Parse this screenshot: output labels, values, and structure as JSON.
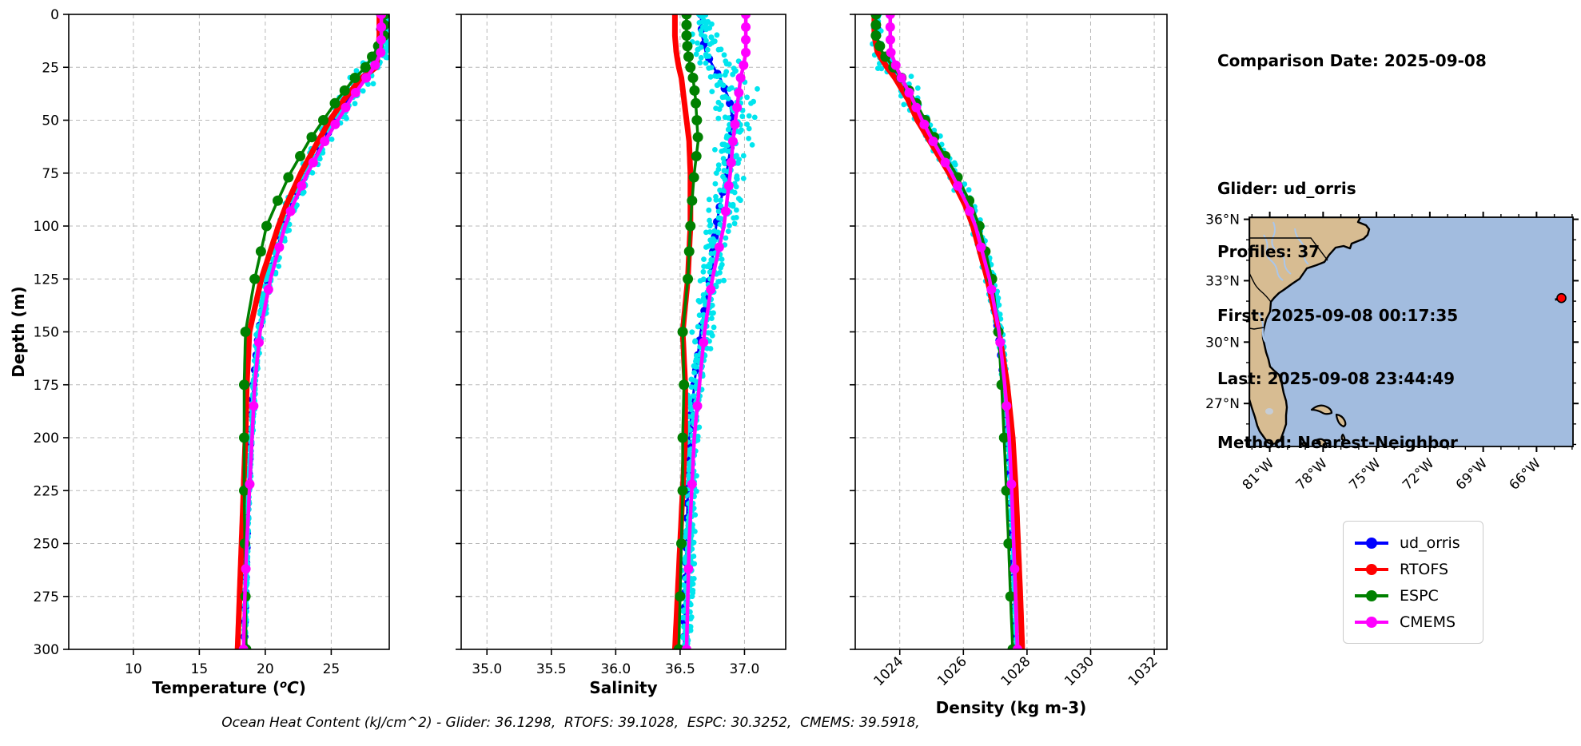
{
  "info_panel": {
    "comparison_date": "Comparison Date: 2025-09-08",
    "glider": "Glider: ud_orris",
    "profiles": "Profiles: 37",
    "first": "First: 2025-09-08 00:17:35",
    "last": "Last: 2025-09-08 23:44:49",
    "method": "Method: Nearest-Neighbor"
  },
  "caption": "Ocean Heat Content (kJ/cm^2) - Glider: 36.1298,  RTOFS: 39.1028,  ESPC: 30.3252,  CMEMS: 39.5918,",
  "legend": {
    "entries": [
      {
        "label": "ud_orris",
        "color": "#0000ff"
      },
      {
        "label": "RTOFS",
        "color": "#ff0000"
      },
      {
        "label": "ESPC",
        "color": "#008000"
      },
      {
        "label": "CMEMS",
        "color": "#ff00ff"
      }
    ]
  },
  "colors": {
    "grid": "#b8b8b8",
    "scatter": "#00e5ee",
    "ocean": "#a2bcdf",
    "land": "#d7bc92",
    "river": "#aac6ea",
    "glider_dot": "#ff0000"
  },
  "chart_data": [
    {
      "type": "line",
      "panel": "temperature",
      "xlabel": "Temperature (°C)",
      "ylabel": "Depth (m)",
      "xlim": [
        5.1,
        29.4
      ],
      "ylim": [
        300,
        0
      ],
      "xticks": [
        10,
        15,
        20,
        25
      ],
      "xtick_labels": [
        "10",
        "15",
        "20",
        "25"
      ],
      "yticks": [
        0,
        25,
        50,
        75,
        100,
        125,
        150,
        175,
        200,
        225,
        250,
        275,
        300
      ],
      "rotate_xticks": false,
      "depths": [
        0,
        10,
        18,
        25,
        30,
        40,
        50,
        60,
        75,
        90,
        100,
        125,
        150,
        175,
        200,
        225,
        250,
        275,
        300
      ],
      "series": [
        {
          "name": "ud_orris",
          "color": "#0000ff",
          "lw": 3,
          "marker_r": 5,
          "marker_step": 7,
          "values": [
            28.7,
            28.7,
            28.6,
            28.1,
            27.4,
            26.3,
            25.3,
            24.4,
            23.1,
            22.0,
            21.4,
            20.2,
            19.5,
            19.1,
            18.9,
            18.7,
            18.6,
            18.5,
            18.4
          ]
        },
        {
          "name": "RTOFS",
          "color": "#ff0000",
          "lw": 7,
          "marker_r": 0,
          "marker_step": 0,
          "values": [
            28.65,
            28.65,
            28.55,
            28.4,
            27.3,
            26.0,
            24.9,
            24.0,
            22.7,
            21.6,
            21.0,
            19.7,
            18.8,
            18.6,
            18.5,
            18.35,
            18.2,
            18.05,
            17.9
          ]
        },
        {
          "name": "ESPC",
          "color": "#008000",
          "lw": 3.5,
          "marker_r": 6.5,
          "marker_depths": [
            0,
            5,
            10,
            15,
            20,
            25,
            30,
            36,
            42,
            50,
            58,
            67,
            77,
            88,
            100,
            112,
            125,
            150,
            175,
            200,
            225,
            250,
            275,
            300
          ],
          "values": [
            29.05,
            29.0,
            28.3,
            27.6,
            26.8,
            25.5,
            24.4,
            23.3,
            21.9,
            20.8,
            20.1,
            19.2,
            18.5,
            18.4,
            18.4,
            18.4,
            18.45,
            18.5,
            18.55
          ]
        },
        {
          "name": "CMEMS",
          "color": "#ff00ff",
          "lw": 4.5,
          "marker_r": 6,
          "marker_depths": [
            0,
            6,
            12,
            18,
            24,
            30,
            37,
            44,
            52,
            60,
            70,
            81,
            93,
            110,
            130,
            155,
            185,
            222,
            262,
            300
          ],
          "values": [
            28.8,
            28.8,
            28.75,
            28.25,
            27.65,
            26.5,
            25.5,
            24.5,
            23.2,
            22.1,
            21.5,
            20.4,
            19.6,
            19.2,
            19.0,
            18.8,
            18.6,
            18.45,
            18.35
          ]
        }
      ],
      "scatter": {
        "name": "glider raw profiles",
        "base": "ud_orris",
        "profiles": 6,
        "depth_step": 3.2,
        "spread": [
          [
            0,
            0.12
          ],
          [
            15,
            0.3
          ],
          [
            25,
            1.0
          ],
          [
            35,
            1.0
          ],
          [
            50,
            0.6
          ],
          [
            75,
            0.5
          ],
          [
            100,
            0.45
          ],
          [
            130,
            0.3
          ],
          [
            160,
            0.15
          ],
          [
            200,
            0.1
          ],
          [
            250,
            0.08
          ],
          [
            300,
            0.07
          ]
        ],
        "bias": [
          [
            0,
            0.45
          ],
          [
            15,
            0.45
          ],
          [
            25,
            0.25
          ],
          [
            40,
            0.15
          ],
          [
            60,
            0.1
          ],
          [
            100,
            0.15
          ],
          [
            150,
            0.1
          ],
          [
            200,
            0.05
          ],
          [
            300,
            0.05
          ]
        ]
      }
    },
    {
      "type": "line",
      "panel": "salinity",
      "xlabel": "Salinity",
      "ylabel": "Depth (m)",
      "xlim": [
        34.8,
        37.32
      ],
      "ylim": [
        300,
        0
      ],
      "xticks": [
        35.0,
        35.5,
        36.0,
        36.5,
        37.0
      ],
      "xtick_labels": [
        "35.0",
        "35.5",
        "36.0",
        "36.5",
        "37.0"
      ],
      "yticks": [
        0,
        25,
        50,
        75,
        100,
        125,
        150,
        175,
        200,
        225,
        250,
        275,
        300
      ],
      "rotate_xticks": false,
      "depths": [
        0,
        10,
        18,
        25,
        30,
        40,
        50,
        60,
        75,
        90,
        100,
        125,
        150,
        175,
        200,
        225,
        250,
        275,
        300
      ],
      "series": [
        {
          "name": "ud_orris",
          "color": "#0000ff",
          "lw": 3,
          "marker_r": 5,
          "marker_step": 7,
          "values": [
            36.66,
            36.67,
            36.7,
            36.76,
            36.81,
            36.88,
            36.91,
            36.9,
            36.86,
            36.81,
            36.78,
            36.73,
            36.66,
            36.61,
            36.57,
            36.56,
            36.55,
            36.54,
            36.53
          ]
        },
        {
          "name": "RTOFS",
          "color": "#ff0000",
          "lw": 7,
          "marker_r": 0,
          "marker_step": 0,
          "values": [
            36.46,
            36.46,
            36.47,
            36.49,
            36.51,
            36.53,
            36.55,
            36.57,
            36.58,
            36.58,
            36.58,
            36.56,
            36.52,
            36.54,
            36.54,
            36.52,
            36.5,
            36.48,
            36.46
          ]
        },
        {
          "name": "ESPC",
          "color": "#008000",
          "lw": 3.5,
          "marker_r": 6.5,
          "marker_depths": [
            0,
            5,
            10,
            15,
            20,
            25,
            30,
            36,
            42,
            50,
            58,
            67,
            77,
            88,
            100,
            112,
            125,
            150,
            175,
            200,
            225,
            250,
            275,
            300
          ],
          "values": [
            36.55,
            36.55,
            36.56,
            36.58,
            36.6,
            36.62,
            36.63,
            36.64,
            36.61,
            36.59,
            36.58,
            36.56,
            36.52,
            36.53,
            36.52,
            36.52,
            36.51,
            36.5,
            36.49
          ]
        },
        {
          "name": "CMEMS",
          "color": "#ff00ff",
          "lw": 4.5,
          "marker_r": 6,
          "marker_depths": [
            0,
            6,
            12,
            18,
            24,
            30,
            37,
            44,
            52,
            60,
            70,
            81,
            93,
            110,
            130,
            155,
            185,
            222,
            262,
            300
          ],
          "values": [
            37.01,
            37.01,
            37.01,
            36.99,
            36.97,
            36.95,
            36.93,
            36.91,
            36.89,
            36.86,
            36.84,
            36.75,
            36.69,
            36.65,
            36.61,
            36.59,
            36.57,
            36.56,
            36.55
          ]
        }
      ],
      "scatter": {
        "name": "glider raw profiles",
        "base": "ud_orris",
        "profiles": 6,
        "depth_step": 3.2,
        "spread": [
          [
            0,
            0.04
          ],
          [
            20,
            0.1
          ],
          [
            30,
            0.17
          ],
          [
            45,
            0.13
          ],
          [
            60,
            0.1
          ],
          [
            80,
            0.09
          ],
          [
            100,
            0.09
          ],
          [
            130,
            0.07
          ],
          [
            160,
            0.05
          ],
          [
            200,
            0.04
          ],
          [
            300,
            0.03
          ]
        ],
        "bias": [
          [
            0,
            0.02
          ],
          [
            30,
            0.05
          ],
          [
            60,
            0.03
          ],
          [
            100,
            0.02
          ],
          [
            300,
            0.02
          ]
        ]
      }
    },
    {
      "type": "line",
      "panel": "density",
      "xlabel": "Density (kg m-3)",
      "ylabel": "Depth (m)",
      "xlim": [
        1022.6,
        1032.4
      ],
      "ylim": [
        300,
        0
      ],
      "xticks": [
        1024,
        1026,
        1028,
        1030,
        1032
      ],
      "xtick_labels": [
        "1024",
        "1026",
        "1028",
        "1030",
        "1032"
      ],
      "yticks": [
        0,
        25,
        50,
        75,
        100,
        125,
        150,
        175,
        200,
        225,
        250,
        275,
        300
      ],
      "rotate_xticks": true,
      "depths": [
        0,
        10,
        18,
        25,
        30,
        40,
        50,
        60,
        75,
        90,
        100,
        125,
        150,
        175,
        200,
        225,
        250,
        275,
        300
      ],
      "series": [
        {
          "name": "ud_orris",
          "color": "#0000ff",
          "lw": 3,
          "marker_r": 5,
          "marker_step": 7,
          "values": [
            1023.3,
            1023.3,
            1023.35,
            1023.7,
            1023.95,
            1024.3,
            1024.65,
            1025.0,
            1025.6,
            1026.1,
            1026.35,
            1026.8,
            1027.1,
            1027.28,
            1027.4,
            1027.48,
            1027.55,
            1027.6,
            1027.65
          ]
        },
        {
          "name": "RTOFS",
          "color": "#ff0000",
          "lw": 7,
          "marker_r": 0,
          "marker_step": 0,
          "values": [
            1023.2,
            1023.2,
            1023.3,
            1023.6,
            1023.85,
            1024.25,
            1024.55,
            1024.95,
            1025.55,
            1026.05,
            1026.3,
            1026.75,
            1027.12,
            1027.38,
            1027.55,
            1027.65,
            1027.72,
            1027.79,
            1027.85
          ]
        },
        {
          "name": "ESPC",
          "color": "#008000",
          "lw": 3.5,
          "marker_r": 6.5,
          "marker_depths": [
            0,
            5,
            10,
            15,
            20,
            25,
            30,
            36,
            42,
            50,
            58,
            67,
            77,
            88,
            100,
            112,
            125,
            150,
            175,
            200,
            225,
            250,
            275,
            300
          ],
          "values": [
            1023.25,
            1023.25,
            1023.45,
            1023.8,
            1024.05,
            1024.45,
            1024.8,
            1025.15,
            1025.75,
            1026.25,
            1026.5,
            1026.9,
            1027.1,
            1027.2,
            1027.28,
            1027.35,
            1027.42,
            1027.48,
            1027.55
          ]
        },
        {
          "name": "CMEMS",
          "color": "#ff00ff",
          "lw": 4.5,
          "marker_r": 6,
          "marker_depths": [
            0,
            6,
            12,
            18,
            24,
            30,
            37,
            44,
            52,
            60,
            70,
            81,
            93,
            110,
            130,
            155,
            185,
            222,
            262,
            300
          ],
          "values": [
            1023.7,
            1023.7,
            1023.72,
            1023.9,
            1024.05,
            1024.4,
            1024.7,
            1025.05,
            1025.62,
            1026.12,
            1026.38,
            1026.82,
            1027.12,
            1027.3,
            1027.44,
            1027.52,
            1027.58,
            1027.64,
            1027.7
          ]
        }
      ],
      "scatter": {
        "name": "glider raw profiles",
        "base": "ud_orris",
        "profiles": 6,
        "depth_step": 3.2,
        "spread": [
          [
            0,
            0.06
          ],
          [
            15,
            0.12
          ],
          [
            25,
            0.32
          ],
          [
            35,
            0.32
          ],
          [
            50,
            0.22
          ],
          [
            75,
            0.18
          ],
          [
            100,
            0.14
          ],
          [
            130,
            0.1
          ],
          [
            160,
            0.07
          ],
          [
            200,
            0.05
          ],
          [
            300,
            0.04
          ]
        ],
        "bias": [
          [
            0,
            0.0
          ],
          [
            25,
            -0.05
          ],
          [
            50,
            0.05
          ],
          [
            100,
            0.05
          ],
          [
            300,
            0.02
          ]
        ]
      }
    },
    {
      "type": "map",
      "panel": "glider-location-map",
      "lon_range": [
        -82.15,
        -63.95
      ],
      "lat_range": [
        24.9,
        36.1
      ],
      "xticks": [
        -81,
        -78,
        -75,
        -72,
        -69,
        -66
      ],
      "xtick_labels": [
        "81°W",
        "78°W",
        "75°W",
        "72°W",
        "69°W",
        "66°W"
      ],
      "yticks": [
        36,
        33,
        30,
        27
      ],
      "ytick_labels": [
        "36°N",
        "33°N",
        "30°N",
        "27°N"
      ],
      "glider_position": {
        "lon": -64.6,
        "lat": 32.15
      }
    }
  ]
}
